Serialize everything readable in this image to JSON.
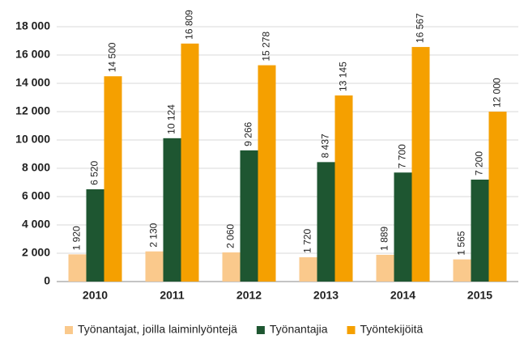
{
  "chart_data": {
    "type": "bar",
    "categories": [
      "2010",
      "2011",
      "2012",
      "2013",
      "2014",
      "2015"
    ],
    "series": [
      {
        "name": "Työnantajat, joilla laiminlyöntejä",
        "color": "#fac98c",
        "values": [
          1920,
          2130,
          2060,
          1720,
          1889,
          1565
        ],
        "value_labels": [
          "1 920",
          "2 130",
          "2 060",
          "1 720",
          "1 889",
          "1 565"
        ]
      },
      {
        "name": "Työnantajia",
        "color": "#1e5631",
        "values": [
          6520,
          10124,
          9266,
          8437,
          7700,
          7200
        ],
        "value_labels": [
          "6 520",
          "10 124",
          "9 266",
          "8 437",
          "7 700",
          "7 200"
        ]
      },
      {
        "name": "Työntekijöitä",
        "color": "#f5a000",
        "values": [
          14500,
          16809,
          15278,
          13145,
          16567,
          12000
        ],
        "value_labels": [
          "14 500",
          "16 809",
          "15 278",
          "13 145",
          "16 567",
          "12 000"
        ]
      }
    ],
    "ylim": [
      0,
      18000
    ],
    "yticks": [
      0,
      {
        "value": 2000,
        "label": "2 000"
      },
      {
        "value": 4000,
        "label": "4 000"
      },
      {
        "value": 6000,
        "label": "6 000"
      },
      {
        "value": 8000,
        "label": "8 000"
      },
      {
        "value": 10000,
        "label": "10 000"
      },
      {
        "value": 12000,
        "label": "12 000"
      },
      {
        "value": 14000,
        "label": "14 000"
      },
      {
        "value": 16000,
        "label": "16 000"
      },
      {
        "value": 18000,
        "label": "18 000"
      }
    ],
    "grid": true,
    "legend": "bottom"
  }
}
